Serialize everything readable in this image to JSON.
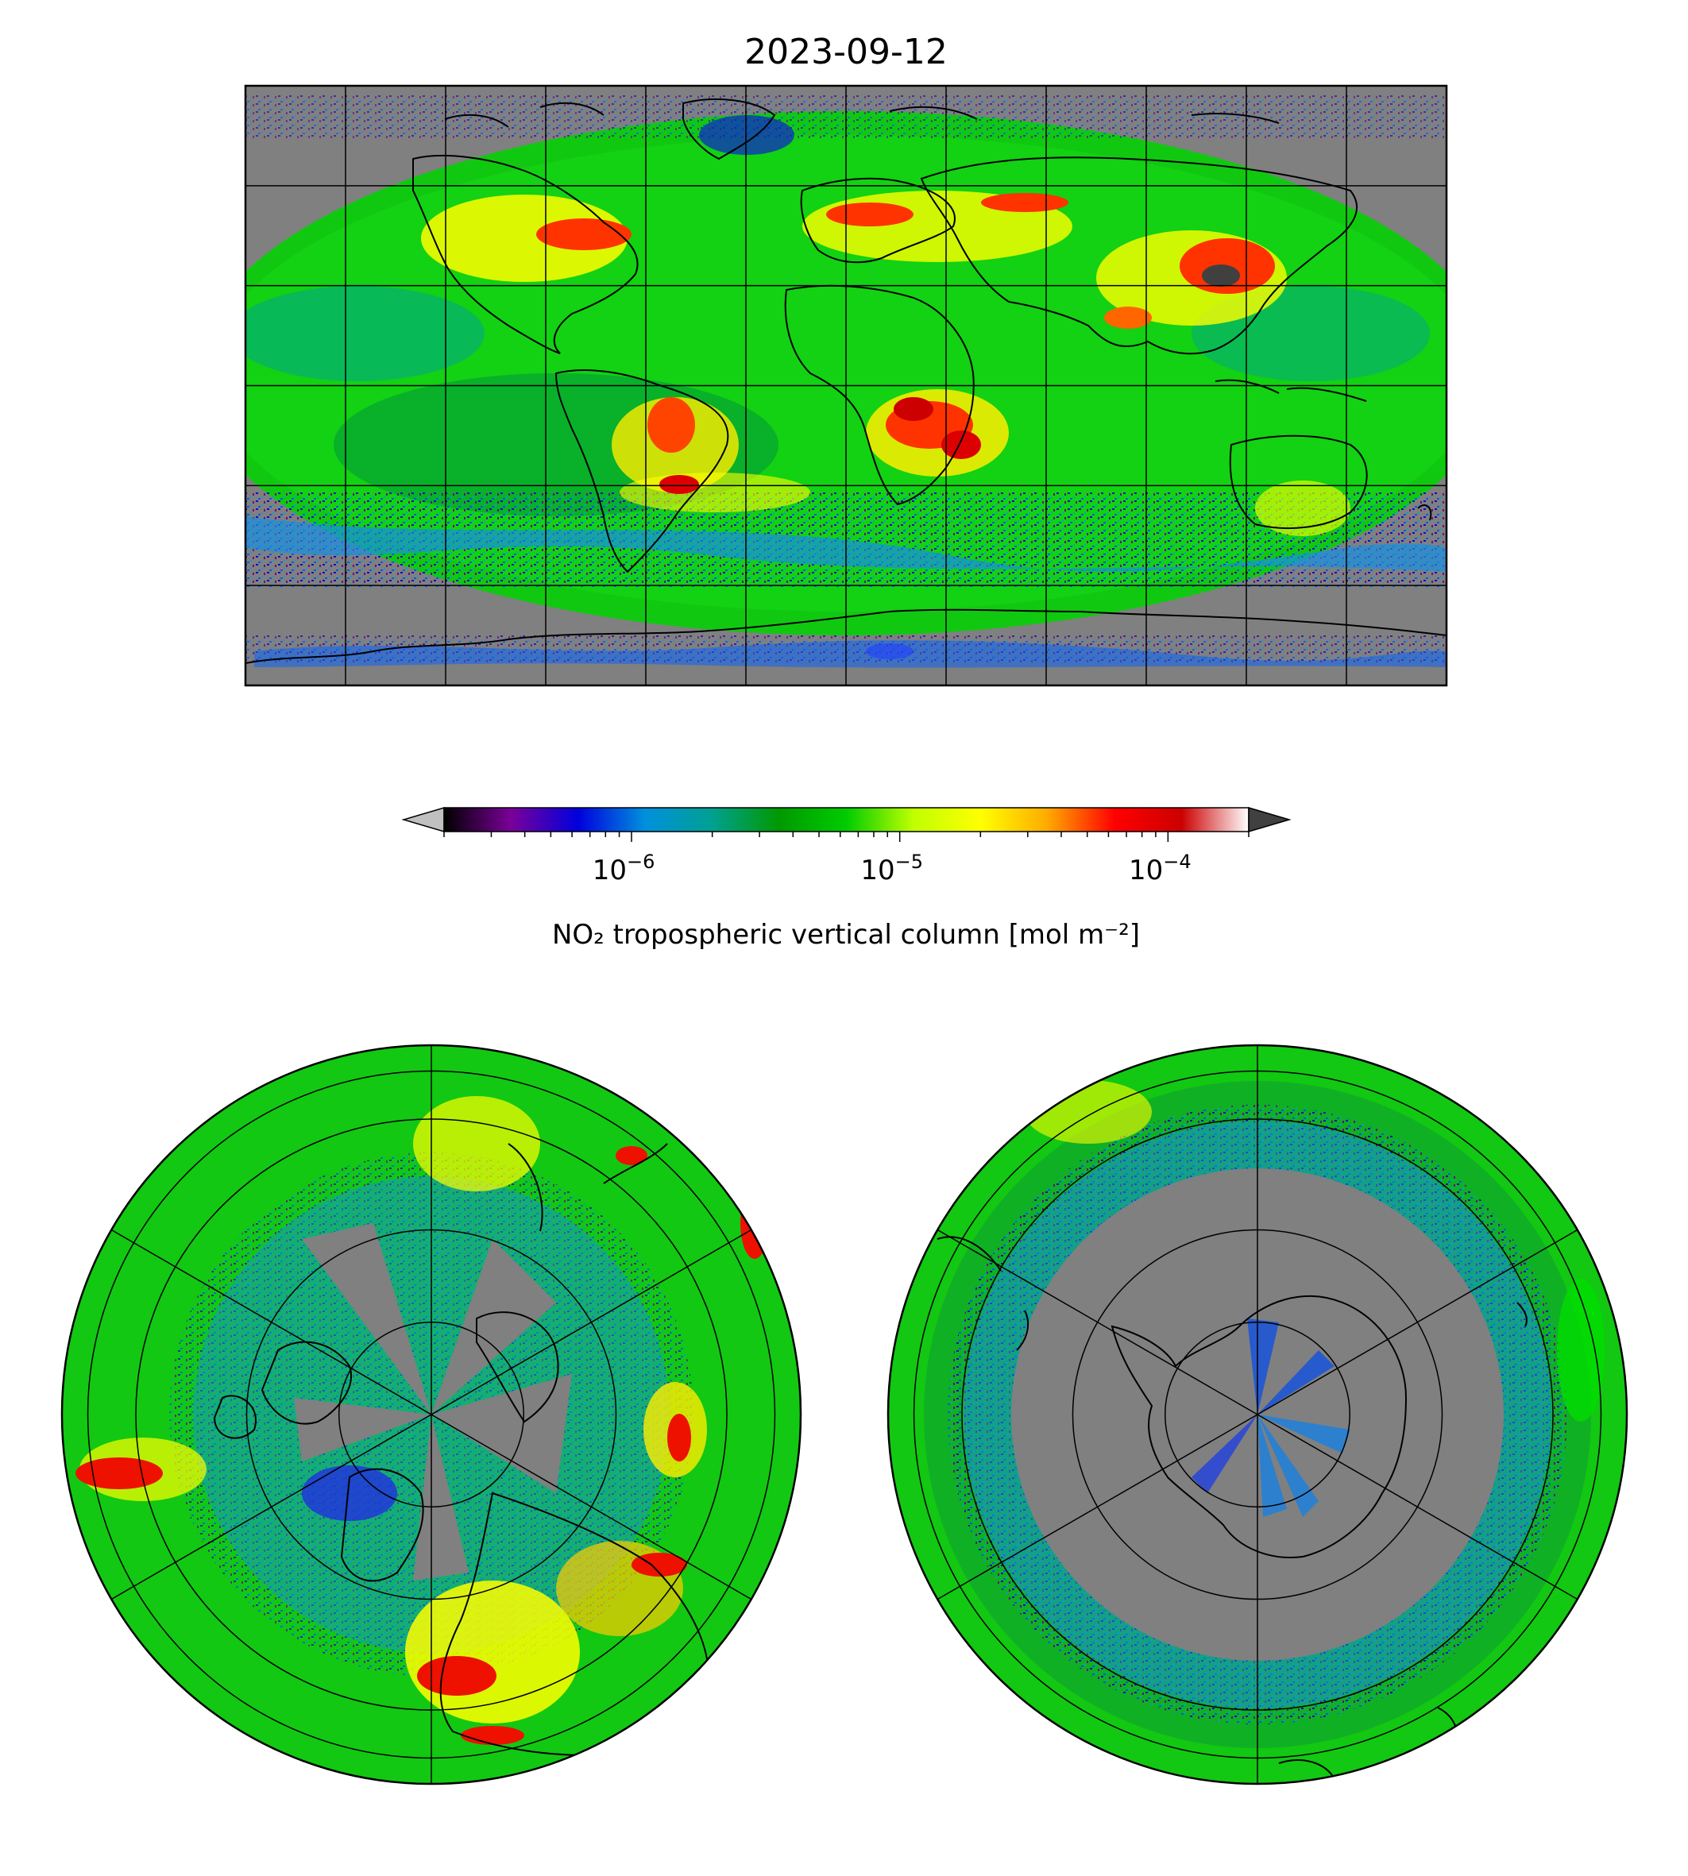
{
  "figure": {
    "title": "2023-09-12"
  },
  "colorbar": {
    "label": "NO₂ tropospheric vertical column [mol m⁻²]",
    "scale": "log",
    "range": [
      2e-07,
      0.0002
    ],
    "ticks": [
      {
        "value": 1e-06,
        "base": "10",
        "exp": "−6"
      },
      {
        "value": 1e-05,
        "base": "10",
        "exp": "−5"
      },
      {
        "value": 0.0001,
        "base": "10",
        "exp": "−4"
      }
    ],
    "extend": "both",
    "under_color": "#c0c0c0",
    "over_color": "#404040",
    "colormap_stops": [
      "#000000",
      "#7a0099",
      "#0000dd",
      "#0090dd",
      "#00a090",
      "#009900",
      "#00cc00",
      "#c0ff00",
      "#ffff00",
      "#ffaa00",
      "#ff0000",
      "#cc0000",
      "#ffffff"
    ]
  },
  "colors": {
    "no_data": "#808080",
    "over_range": "#404040",
    "coastline": "#000000",
    "grid": "#000000"
  },
  "maps": [
    {
      "name": "global-map",
      "projection": "equirectangular",
      "gridlines": {
        "lon_step_deg": 30,
        "lat_step_deg": 30
      }
    },
    {
      "name": "north-polar-map",
      "projection": "polar",
      "hemisphere": "north"
    },
    {
      "name": "south-polar-map",
      "projection": "polar",
      "hemisphere": "south"
    }
  ]
}
